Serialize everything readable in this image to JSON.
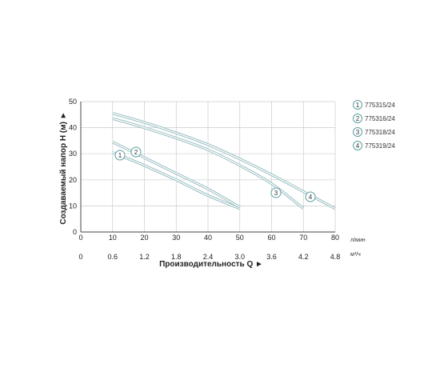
{
  "chart_data": {
    "type": "line",
    "ylabel": "Создаваемый напор H (м) ►",
    "xlabel": "Производительность Q ►",
    "x_unit": "л/мин",
    "x2_unit": "м³/ч",
    "xlim": [
      0,
      80
    ],
    "ylim": [
      0,
      50
    ],
    "x_ticks": [
      "0",
      "10",
      "20",
      "30",
      "40",
      "50",
      "60",
      "70",
      "80"
    ],
    "x2_ticks": [
      "0",
      "0.6",
      "1.2",
      "1.8",
      "2.4",
      "3.0",
      "3.6",
      "4.2",
      "4.8"
    ],
    "y_ticks": [
      "0",
      "10",
      "20",
      "30",
      "40",
      "50"
    ],
    "grid": true,
    "legend_position": "right",
    "colors": {
      "curve": "#8fb8bc",
      "grid": "#cccccc",
      "badge": "#5a9ea3"
    },
    "series": [
      {
        "name": "775315/24",
        "badge": "1",
        "x": [
          10,
          20,
          30,
          40,
          50
        ],
        "y": [
          30.5,
          25.5,
          20,
          14,
          9
        ]
      },
      {
        "name": "775316/24",
        "badge": "2",
        "x": [
          10,
          20,
          30,
          40,
          50
        ],
        "y": [
          34.5,
          28.5,
          22.5,
          16.5,
          9.5
        ]
      },
      {
        "name": "775318/24",
        "badge": "3",
        "x": [
          10,
          20,
          30,
          40,
          50,
          60,
          70
        ],
        "y": [
          43.5,
          40,
          36,
          31.5,
          25.5,
          18.5,
          9
        ]
      },
      {
        "name": "775319/24",
        "badge": "4",
        "x": [
          10,
          20,
          30,
          40,
          50,
          60,
          70,
          80
        ],
        "y": [
          45.5,
          42,
          38,
          33.5,
          28,
          22,
          15.5,
          9
        ]
      }
    ]
  }
}
